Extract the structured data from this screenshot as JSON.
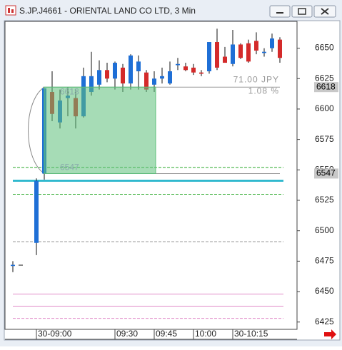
{
  "chart_data": {
    "type": "candlestick",
    "title": "S.JP.J4661 - ORIENTAL LAND CO LTD, 3 Min",
    "categories": [
      null,
      null,
      null,
      "30-09:00",
      null,
      null,
      null,
      null,
      null,
      null,
      null,
      null,
      null,
      "09:30",
      null,
      null,
      null,
      null,
      "09:45",
      null,
      null,
      null,
      null,
      "10:00",
      null,
      null,
      null,
      null,
      "30-10:15",
      null,
      null,
      null,
      null,
      null,
      null
    ],
    "open": [
      6471,
      6472,
      null,
      6490,
      6547,
      6614,
      6589,
      6609,
      6609,
      6594,
      6614,
      6620,
      6632,
      6625,
      6634,
      6621,
      6631,
      6630,
      6620,
      6625,
      6621,
      6636,
      6635,
      6634,
      6630,
      6631,
      6655,
      6643,
      6637,
      6653,
      6654,
      6656,
      6646,
      6650,
      6657
    ],
    "high": [
      6475,
      6472,
      null,
      6543,
      6618,
      6631,
      6616,
      6618,
      6616,
      6634,
      6647,
      6640,
      6638,
      6639,
      6637,
      6645,
      6644,
      6632,
      6631,
      6634,
      6639,
      6642,
      6638,
      6637,
      6632,
      6655,
      6666,
      6651,
      6665,
      6654,
      6657,
      6663,
      6650,
      6662,
      6659
    ],
    "low": [
      6466,
      6472,
      null,
      6480,
      6542,
      6590,
      6584,
      6594,
      6584,
      6593,
      6611,
      6616,
      6622,
      6616,
      6614,
      6616,
      6616,
      6614,
      6614,
      6621,
      6620,
      6632,
      6631,
      6628,
      6627,
      6629,
      6632,
      6638,
      6635,
      6641,
      6638,
      6645,
      6643,
      6647,
      6638
    ],
    "close": [
      6472,
      6472,
      null,
      6541,
      6617,
      6596,
      6607,
      6611,
      6594,
      6627,
      6627,
      6632,
      6625,
      6638,
      6621,
      6644,
      6639,
      6616,
      6625,
      6627,
      6631,
      6637,
      6632,
      6630,
      6629,
      6655,
      6634,
      6638,
      6653,
      6642,
      6639,
      6648,
      6647,
      6658,
      6642
    ],
    "up_color": "#1f6fd6",
    "down_color": "#d42a2a",
    "ylim": [
      6419,
      6672
    ],
    "yticks": [
      6425,
      6450,
      6475,
      6500,
      6525,
      6550,
      6575,
      6600,
      6625,
      6650
    ],
    "levels": [
      {
        "value": 6552,
        "color": "#2aa82a",
        "dash": true
      },
      {
        "value": 6530,
        "color": "#2aa82a",
        "dash": true
      },
      {
        "value": 6541,
        "color": "#18b0c8",
        "dash": false
      },
      {
        "value": 6491,
        "color": "#999999",
        "dash": true
      },
      {
        "value": 6448,
        "color": "#e08ac8",
        "dash": false
      },
      {
        "value": 6438,
        "color": "#e08ac8",
        "dash": false
      },
      {
        "value": 6428,
        "color": "#e08ac8",
        "dash": true
      }
    ],
    "price_markers": [
      6618,
      6547
    ],
    "measure": {
      "start": 6547,
      "end": 6618,
      "change_label": "71.00 JPY",
      "percent_label": "1.08 %",
      "color": "#5cbf7a"
    }
  }
}
